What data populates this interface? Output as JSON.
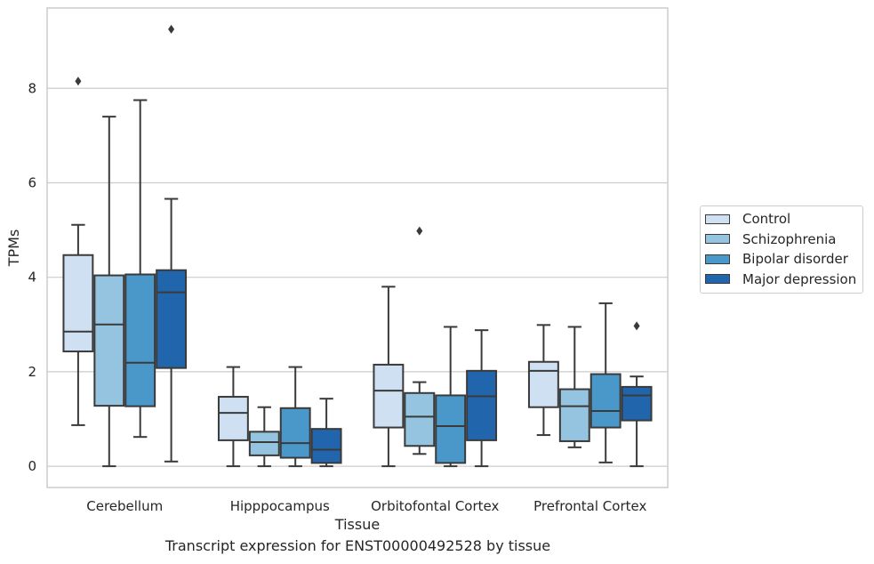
{
  "caption": "Transcript expression for ENST00000492528 by tissue",
  "colors": {
    "grid": "#cccccc",
    "frame": "#cccccc",
    "whisker": "#3a3a3a",
    "series": [
      "#cfe0f2",
      "#94c4df",
      "#4a98c9",
      "#2166ac"
    ]
  },
  "chart_data": {
    "type": "box",
    "xlabel": "Tissue",
    "ylabel": "TPMs",
    "categories": [
      "Cerebellum",
      "Hipppocampus",
      "Orbitofontal Cortex",
      "Prefrontal Cortex"
    ],
    "yticks": [
      0,
      2,
      4,
      6,
      8
    ],
    "ylim": [
      -0.45,
      9.7
    ],
    "grid": true,
    "legend_position": "right",
    "series": [
      {
        "name": "Control",
        "boxes": [
          {
            "min": 0.87,
            "q1": 2.43,
            "median": 2.85,
            "q3": 4.47,
            "max": 5.11,
            "outliers": [
              8.15
            ]
          },
          {
            "min": 0.0,
            "q1": 0.55,
            "median": 1.13,
            "q3": 1.47,
            "max": 2.1,
            "outliers": []
          },
          {
            "min": 0.0,
            "q1": 0.82,
            "median": 1.6,
            "q3": 2.15,
            "max": 3.8,
            "outliers": []
          },
          {
            "min": 0.66,
            "q1": 1.25,
            "median": 2.02,
            "q3": 2.21,
            "max": 2.99,
            "outliers": []
          }
        ]
      },
      {
        "name": "Schizophrenia",
        "boxes": [
          {
            "min": 0.0,
            "q1": 1.28,
            "median": 3.0,
            "q3": 4.04,
            "max": 7.4,
            "outliers": []
          },
          {
            "min": 0.0,
            "q1": 0.23,
            "median": 0.51,
            "q3": 0.73,
            "max": 1.25,
            "outliers": []
          },
          {
            "min": 0.26,
            "q1": 0.43,
            "median": 1.05,
            "q3": 1.55,
            "max": 1.78,
            "outliers": [
              4.98
            ]
          },
          {
            "min": 0.4,
            "q1": 0.53,
            "median": 1.27,
            "q3": 1.63,
            "max": 2.95,
            "outliers": []
          }
        ]
      },
      {
        "name": "Bipolar disorder",
        "boxes": [
          {
            "min": 0.62,
            "q1": 1.27,
            "median": 2.19,
            "q3": 4.06,
            "max": 7.75,
            "outliers": []
          },
          {
            "min": 0.0,
            "q1": 0.18,
            "median": 0.49,
            "q3": 1.23,
            "max": 2.1,
            "outliers": []
          },
          {
            "min": 0.0,
            "q1": 0.07,
            "median": 0.85,
            "q3": 1.5,
            "max": 2.95,
            "outliers": []
          },
          {
            "min": 0.08,
            "q1": 0.82,
            "median": 1.17,
            "q3": 1.95,
            "max": 3.45,
            "outliers": []
          }
        ]
      },
      {
        "name": "Major depression",
        "boxes": [
          {
            "min": 0.1,
            "q1": 2.08,
            "median": 3.68,
            "q3": 4.15,
            "max": 5.66,
            "outliers": [
              9.25
            ]
          },
          {
            "min": 0.0,
            "q1": 0.07,
            "median": 0.35,
            "q3": 0.79,
            "max": 1.43,
            "outliers": []
          },
          {
            "min": 0.0,
            "q1": 0.55,
            "median": 1.48,
            "q3": 2.02,
            "max": 2.88,
            "outliers": []
          },
          {
            "min": 0.0,
            "q1": 0.97,
            "median": 1.5,
            "q3": 1.68,
            "max": 1.9,
            "outliers": [
              2.97
            ]
          }
        ]
      }
    ]
  }
}
